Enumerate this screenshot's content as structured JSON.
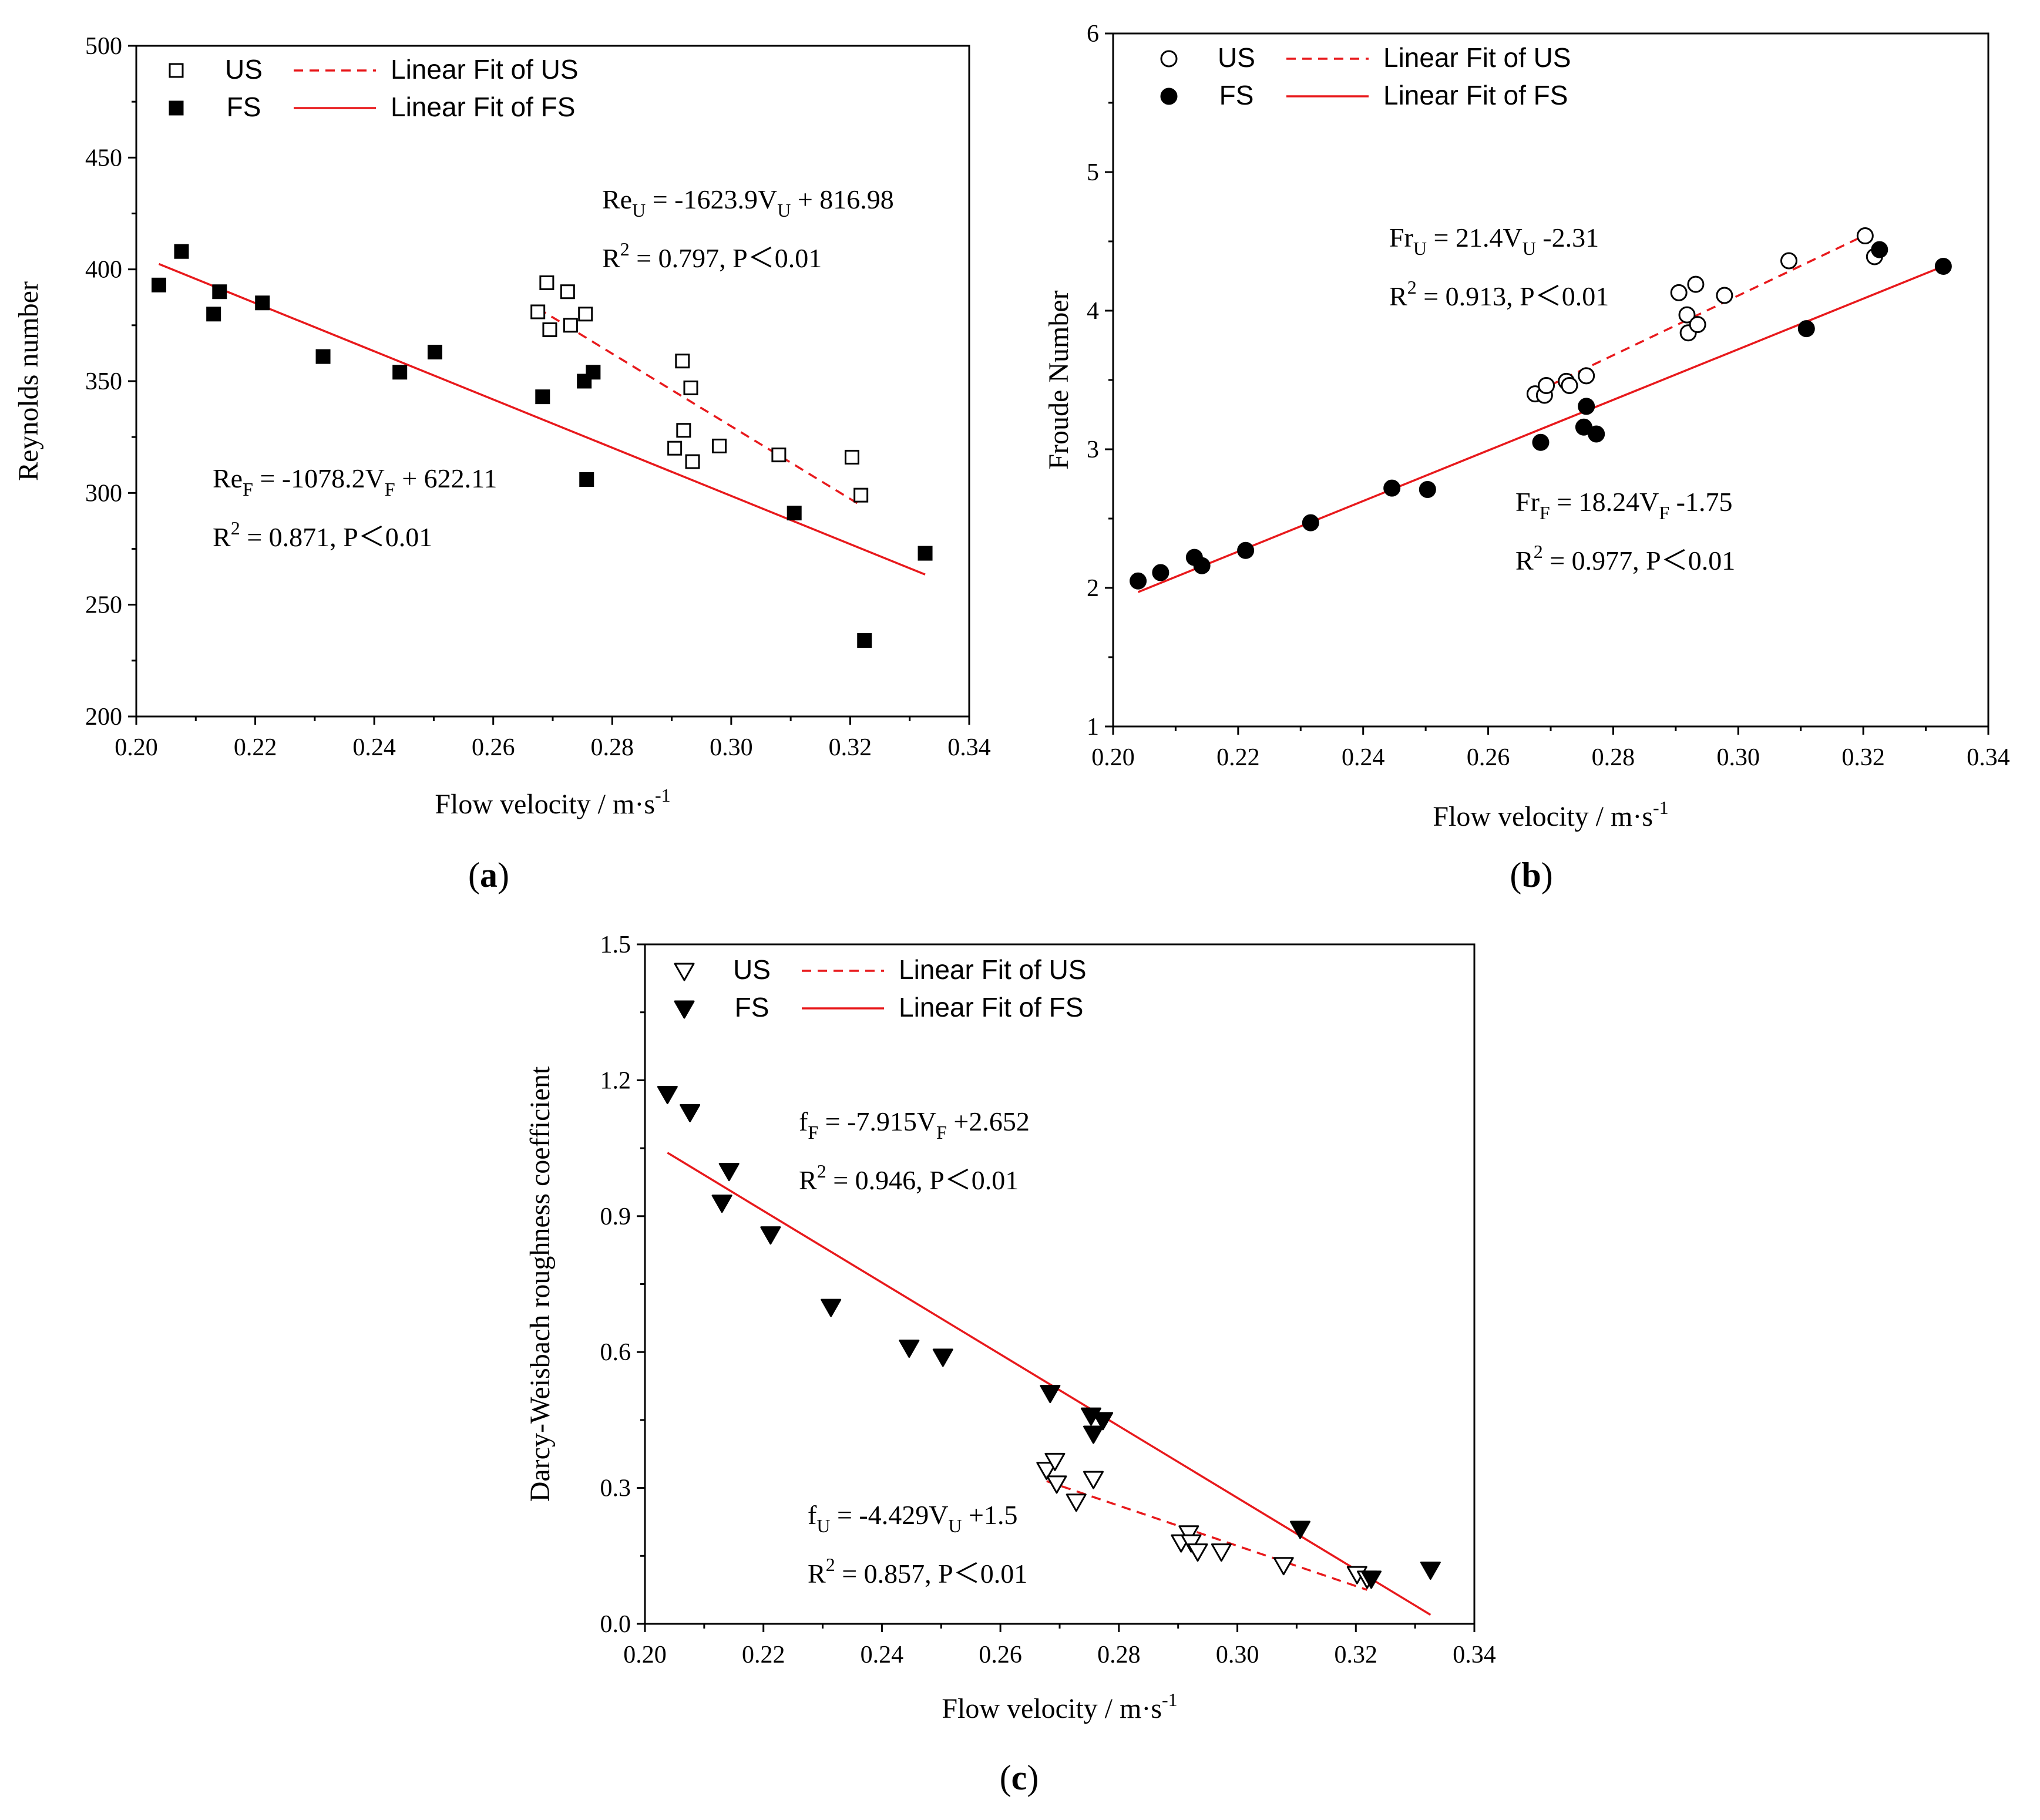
{
  "figure": {
    "panel_labels": [
      "(a)",
      "(b)",
      "(c)"
    ]
  },
  "chart_data": [
    {
      "id": "a",
      "type": "scatter",
      "title": "",
      "xlabel": "Flow velocity / m·s",
      "xlabel_sup": "-1",
      "ylabel": "Reynolds number",
      "xlim": [
        0.2,
        0.34
      ],
      "ylim": [
        200,
        500
      ],
      "xticks": [
        0.2,
        0.22,
        0.24,
        0.26,
        0.28,
        0.3,
        0.32,
        0.34
      ],
      "yticks": [
        200,
        250,
        300,
        350,
        400,
        450,
        500
      ],
      "xtick_labels": [
        "0.20",
        "0.22",
        "0.24",
        "0.26",
        "0.28",
        "0.30",
        "0.32",
        "0.34"
      ],
      "ytick_labels": [
        "200",
        "250",
        "300",
        "350",
        "400",
        "450",
        "500"
      ],
      "marker": "square",
      "legend": {
        "placement": "top-left",
        "us": "US",
        "fs": "FS",
        "us_fit": "Linear Fit of US",
        "fs_fit": "Linear Fit of FS"
      },
      "series": [
        {
          "name": "US",
          "filled": false,
          "x": [
            0.2675,
            0.269,
            0.2695,
            0.2725,
            0.273,
            0.2755,
            0.2905,
            0.2918,
            0.292,
            0.2932,
            0.2935,
            0.298,
            0.308,
            0.3203,
            0.3218
          ],
          "y": [
            381,
            394,
            373,
            390,
            375,
            380,
            320,
            359,
            328,
            347,
            314,
            321,
            317,
            316,
            299
          ]
        },
        {
          "name": "FS",
          "filled": true,
          "x": [
            0.2038,
            0.2076,
            0.213,
            0.214,
            0.2212,
            0.2314,
            0.2443,
            0.2502,
            0.2683,
            0.2753,
            0.2757,
            0.2768,
            0.3106,
            0.3224,
            0.3326
          ],
          "y": [
            393,
            408,
            380,
            390,
            385,
            361,
            354,
            363,
            343,
            350,
            306,
            354,
            291,
            234,
            273
          ]
        }
      ],
      "fits": [
        {
          "name": "Linear Fit of US",
          "style": "dashed",
          "x": [
            0.2675,
            0.3215
          ],
          "y": [
            382.6,
            294.9
          ]
        },
        {
          "name": "Linear Fit of FS",
          "style": "solid",
          "x": [
            0.2038,
            0.3326
          ],
          "y": [
            402.4,
            263.5
          ]
        }
      ],
      "equations": [
        {
          "lhs": "Re",
          "lsub": "U",
          "rhs": " = -1623.9V",
          "vsub": "U",
          "tail": " + 816.98",
          "r2": " = 0.797, P＜0.01"
        },
        {
          "lhs": "Re",
          "lsub": "F",
          "rhs": " = -1078.2V",
          "vsub": "F",
          "tail": " + 622.11",
          "r2": " = 0.871, P＜0.01"
        }
      ]
    },
    {
      "id": "b",
      "type": "scatter",
      "title": "",
      "xlabel": "Flow velocity / m·s",
      "xlabel_sup": "-1",
      "ylabel": "Froude Number",
      "xlim": [
        0.2,
        0.34
      ],
      "ylim": [
        1,
        6
      ],
      "xticks": [
        0.2,
        0.22,
        0.24,
        0.26,
        0.28,
        0.3,
        0.32,
        0.34
      ],
      "yticks": [
        1,
        2,
        3,
        4,
        5,
        6
      ],
      "xtick_labels": [
        "0.20",
        "0.22",
        "0.24",
        "0.26",
        "0.28",
        "0.30",
        "0.32",
        "0.34"
      ],
      "ytick_labels": [
        "1",
        "2",
        "3",
        "4",
        "5",
        "6"
      ],
      "marker": "circle",
      "legend": {
        "placement": "top-left",
        "us": "US",
        "fs": "FS",
        "us_fit": "Linear Fit of US",
        "fs_fit": "Linear Fit of FS"
      },
      "series": [
        {
          "name": "US",
          "filled": false,
          "x": [
            0.2675,
            0.269,
            0.2693,
            0.2725,
            0.273,
            0.2757,
            0.2905,
            0.2918,
            0.292,
            0.2932,
            0.2935,
            0.2978,
            0.3081,
            0.3203,
            0.3218
          ],
          "y": [
            3.4,
            3.39,
            3.46,
            3.49,
            3.46,
            3.53,
            4.13,
            3.97,
            3.84,
            4.19,
            3.9,
            4.11,
            4.36,
            4.54,
            4.39
          ]
        },
        {
          "name": "FS",
          "filled": true,
          "x": [
            0.204,
            0.2076,
            0.213,
            0.2142,
            0.2212,
            0.2316,
            0.2446,
            0.2503,
            0.2684,
            0.2753,
            0.2757,
            0.2773,
            0.3109,
            0.3226,
            0.3328
          ],
          "y": [
            2.05,
            2.11,
            2.22,
            2.16,
            2.27,
            2.47,
            2.72,
            2.71,
            3.05,
            3.16,
            3.31,
            3.11,
            3.87,
            4.44,
            4.32
          ]
        }
      ],
      "fits": [
        {
          "name": "Linear Fit of US",
          "style": "dashed",
          "x": [
            0.2675,
            0.321
          ],
          "y": [
            3.41,
            4.56
          ]
        },
        {
          "name": "Linear Fit of FS",
          "style": "solid",
          "x": [
            0.204,
            0.3328
          ],
          "y": [
            1.97,
            4.32
          ]
        }
      ],
      "equations": [
        {
          "lhs": "Fr",
          "lsub": "U",
          "rhs": " = 21.4V",
          "vsub": "U",
          "tail": " -2.31",
          "r2": " = 0.913, P＜0.01"
        },
        {
          "lhs": "Fr",
          "lsub": "F",
          "rhs": " = 18.24V",
          "vsub": "F",
          "tail": " -1.75",
          "r2": " = 0.977, P＜0.01"
        }
      ]
    },
    {
      "id": "c",
      "type": "scatter",
      "title": "",
      "xlabel": "Flow velocity / m·s",
      "xlabel_sup": "-1",
      "ylabel": "Darcy-Weisbach roughness coefficient",
      "xlim": [
        0.2,
        0.34
      ],
      "ylim": [
        0.0,
        1.5
      ],
      "xticks": [
        0.2,
        0.22,
        0.24,
        0.26,
        0.28,
        0.3,
        0.32,
        0.34
      ],
      "yticks": [
        0.0,
        0.3,
        0.6,
        0.9,
        1.2,
        1.5
      ],
      "xtick_labels": [
        "0.20",
        "0.22",
        "0.24",
        "0.26",
        "0.28",
        "0.30",
        "0.32",
        "0.34"
      ],
      "ytick_labels": [
        "0.0",
        "0.3",
        "0.6",
        "0.9",
        "1.2",
        "1.5"
      ],
      "marker": "triangle-down",
      "legend": {
        "placement": "top-left",
        "us": "US",
        "fs": "FS",
        "us_fit": "Linear Fit of US",
        "fs_fit": "Linear Fit of FS"
      },
      "series": [
        {
          "name": "US",
          "filled": false,
          "x": [
            0.2678,
            0.2692,
            0.2695,
            0.2728,
            0.2757,
            0.2905,
            0.2918,
            0.2922,
            0.2933,
            0.2973,
            0.3078,
            0.3202,
            0.3219
          ],
          "y": [
            0.34,
            0.36,
            0.31,
            0.27,
            0.32,
            0.18,
            0.2,
            0.18,
            0.16,
            0.16,
            0.13,
            0.11,
            0.1
          ]
        },
        {
          "name": "FS",
          "filled": true,
          "x": [
            0.2038,
            0.2076,
            0.213,
            0.2142,
            0.2212,
            0.2314,
            0.2446,
            0.2503,
            0.2684,
            0.2753,
            0.2757,
            0.2773,
            0.3106,
            0.3226,
            0.3326
          ],
          "y": [
            1.17,
            1.13,
            0.93,
            1.0,
            0.86,
            0.7,
            0.61,
            0.59,
            0.51,
            0.46,
            0.42,
            0.45,
            0.21,
            0.1,
            0.12
          ]
        }
      ],
      "fits": [
        {
          "name": "Linear Fit of US",
          "style": "dashed",
          "x": [
            0.2678,
            0.3219
          ],
          "y": [
            0.315,
            0.075
          ]
        },
        {
          "name": "Linear Fit of FS",
          "style": "solid",
          "x": [
            0.2038,
            0.3326
          ],
          "y": [
            1.04,
            0.02
          ]
        }
      ],
      "equations": [
        {
          "lhs": "f",
          "lsub": "F",
          "rhs": " = -7.915V",
          "vsub": "F",
          "tail": " +2.652",
          "r2": " = 0.946, P＜0.01"
        },
        {
          "lhs": "f",
          "lsub": "U",
          "rhs": " = -4.429V",
          "vsub": "U",
          "tail": " +1.5",
          "r2": " = 0.857, P＜0.01"
        }
      ]
    }
  ]
}
